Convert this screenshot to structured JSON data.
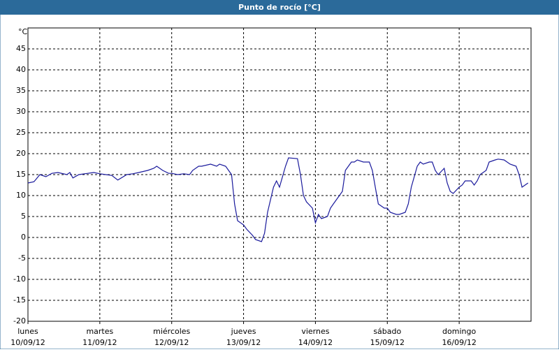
{
  "chart_data": {
    "type": "line",
    "title": "Punto de rocío [°C]",
    "y_unit": "°C",
    "x": [
      0,
      2,
      4,
      6,
      8,
      10,
      13,
      14,
      15,
      17,
      20,
      22,
      24,
      26,
      28,
      30,
      33,
      35,
      37,
      40,
      42,
      43,
      45,
      47,
      48,
      50,
      52,
      54,
      55,
      57,
      58,
      61,
      63,
      64,
      66,
      68,
      69,
      70,
      72,
      73,
      75,
      76,
      78,
      79,
      80,
      82,
      83,
      84,
      86,
      87,
      90,
      91,
      92,
      93,
      95,
      96,
      97,
      98,
      100,
      101,
      102,
      103,
      105,
      106,
      108,
      109,
      110,
      112,
      114,
      115,
      116,
      117,
      119,
      120,
      121,
      123,
      124,
      126,
      127,
      128,
      130,
      131,
      132,
      134,
      135,
      136,
      137,
      139,
      140,
      141,
      142,
      144,
      145,
      146,
      148,
      149,
      150,
      151,
      153,
      154,
      156,
      157,
      159,
      161,
      163,
      164,
      165,
      166,
      167
    ],
    "series": [
      {
        "name": "Punto de rocío",
        "color": "#1a1a9c",
        "values": [
          13,
          13.3,
          15,
          14.5,
          15.3,
          15.5,
          15,
          15.5,
          14.2,
          15,
          15.3,
          15.5,
          15.2,
          15,
          14.8,
          13.7,
          15,
          15.2,
          15.5,
          16,
          16.5,
          17,
          16,
          15.3,
          15.3,
          15,
          15.2,
          15,
          16,
          17,
          17,
          17.5,
          17,
          17.5,
          17,
          15,
          8,
          4,
          3,
          2,
          0.5,
          -0.5,
          -1,
          1,
          6,
          12,
          13.5,
          12,
          17,
          19,
          18.8,
          15,
          10,
          8.5,
          7,
          3.5,
          5.5,
          4.5,
          5,
          7,
          8,
          9,
          11,
          16,
          18,
          18,
          18.5,
          18,
          18,
          16,
          12,
          8,
          7,
          7,
          6,
          5.5,
          5.5,
          6,
          8,
          12,
          17,
          18,
          17.5,
          18,
          18,
          16,
          15,
          16.5,
          13,
          11,
          10.5,
          12,
          12.5,
          13.5,
          13.5,
          12.5,
          13.5,
          15,
          16,
          18,
          18.5,
          18.7,
          18.5,
          17.5,
          17,
          15,
          12,
          12.5,
          13
        ]
      }
    ],
    "xlim": [
      0,
      168
    ],
    "xticks": [
      {
        "value": 0,
        "label": "lunes"
      },
      {
        "value": 24,
        "label": "martes"
      },
      {
        "value": 48,
        "label": "miércoles"
      },
      {
        "value": 72,
        "label": "jueves"
      },
      {
        "value": 96,
        "label": "viernes"
      },
      {
        "value": 120,
        "label": "sábado"
      },
      {
        "value": 144,
        "label": "domingo"
      }
    ],
    "xtick_dates": [
      "10/09/12",
      "11/09/12",
      "12/09/12",
      "13/09/12",
      "14/09/12",
      "15/09/12",
      "16/09/12"
    ],
    "ylim": [
      -20,
      50
    ],
    "yticks": [
      -20,
      -15,
      -10,
      -5,
      0,
      5,
      10,
      15,
      20,
      25,
      30,
      35,
      40,
      45
    ],
    "grid": true
  }
}
